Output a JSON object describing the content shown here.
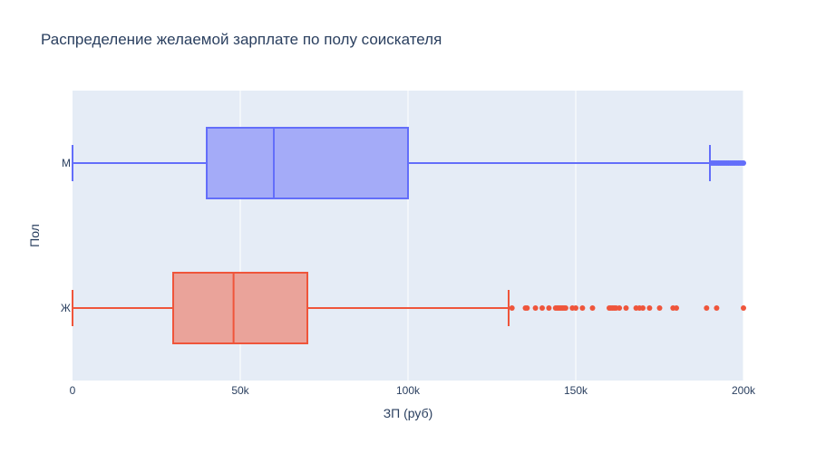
{
  "chart_data": {
    "type": "box",
    "orientation": "horizontal",
    "title": "Распределение желаемой зарплате по полу соискателя",
    "xlabel": "ЗП (руб)",
    "ylabel": "Пол",
    "xlim": [
      0,
      200000
    ],
    "x_ticks": [
      {
        "value": 0,
        "label": "0"
      },
      {
        "value": 50000,
        "label": "50k"
      },
      {
        "value": 100000,
        "label": "100k"
      },
      {
        "value": 150000,
        "label": "150k"
      },
      {
        "value": 200000,
        "label": "200k"
      }
    ],
    "grid": true,
    "plot_bg": "#e5ecf6",
    "categories": [
      "М",
      "Ж"
    ],
    "series": [
      {
        "category": "М",
        "color": "#636efa",
        "fill": "#a4abf8",
        "min": 0,
        "q1": 40000,
        "median": 60000,
        "q3": 100000,
        "upper_fence": 190000,
        "outliers": [
          190500,
          191000,
          191500,
          192000,
          192500,
          193000,
          193500,
          194000,
          194500,
          195000,
          195500,
          196000,
          196500,
          197000,
          197500,
          198000,
          198500,
          199000,
          199500,
          200000
        ]
      },
      {
        "category": "Ж",
        "color": "#ef553b",
        "fill": "#eaa39a",
        "min": 0,
        "q1": 30000,
        "median": 48000,
        "q3": 70000,
        "upper_fence": 130000,
        "outliers": [
          131000,
          135000,
          135500,
          138000,
          140000,
          142000,
          144000,
          144500,
          145000,
          145500,
          146000,
          146500,
          147000,
          149000,
          150000,
          152000,
          155000,
          160000,
          160500,
          161000,
          161500,
          162000,
          163000,
          165000,
          168000,
          169000,
          170000,
          172000,
          175000,
          179000,
          180000,
          189000,
          192000,
          200000
        ]
      }
    ]
  }
}
